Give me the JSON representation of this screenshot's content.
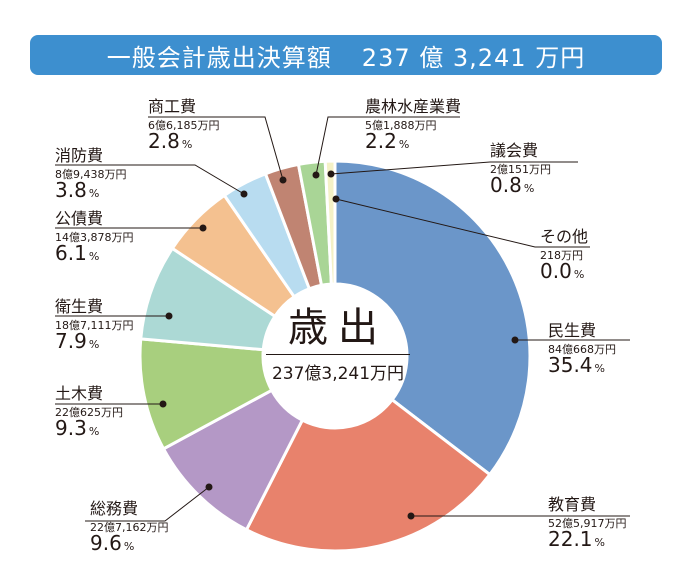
{
  "header": {
    "title": "一般会計歳出決算額",
    "total": "237 億 3,241 万円"
  },
  "center": {
    "title": "歳出",
    "total": "237億3,241万円"
  },
  "chart_data": {
    "type": "pie",
    "donut": true,
    "title": "一般会計歳出決算額",
    "total": "237億3,241万円",
    "slices": [
      {
        "name": "民生費",
        "amount": "84億668万円",
        "percent": 35.4,
        "pct_text": "35.4",
        "color": "#6b96c9"
      },
      {
        "name": "教育費",
        "amount": "52億5,917万円",
        "percent": 22.1,
        "pct_text": "22.1",
        "color": "#e8826c"
      },
      {
        "name": "総務費",
        "amount": "22億7,162万円",
        "percent": 9.6,
        "pct_text": "9.6",
        "color": "#b498c6"
      },
      {
        "name": "土木費",
        "amount": "22億625万円",
        "percent": 9.3,
        "pct_text": "9.3",
        "color": "#a8cf7e"
      },
      {
        "name": "衛生費",
        "amount": "18億7,111万円",
        "percent": 7.9,
        "pct_text": "7.9",
        "color": "#acd9d5"
      },
      {
        "name": "公債費",
        "amount": "14億3,878万円",
        "percent": 6.1,
        "pct_text": "6.1",
        "color": "#f4c190"
      },
      {
        "name": "消防費",
        "amount": "8億9,438万円",
        "percent": 3.8,
        "pct_text": "3.8",
        "color": "#b8dcf0"
      },
      {
        "name": "商工費",
        "amount": "6億6,185万円",
        "percent": 2.8,
        "pct_text": "2.8",
        "color": "#c08472"
      },
      {
        "name": "農林水産業費",
        "amount": "5億1,888万円",
        "percent": 2.2,
        "pct_text": "2.2",
        "color": "#a9d596"
      },
      {
        "name": "議会費",
        "amount": "2億151万円",
        "percent": 0.8,
        "pct_text": "0.8",
        "color": "#f4f1c6"
      },
      {
        "name": "その他",
        "amount": "218万円",
        "percent": 0.0,
        "pct_text": "0.0",
        "color": "#dddddd"
      }
    ],
    "percent_unit": "%"
  }
}
